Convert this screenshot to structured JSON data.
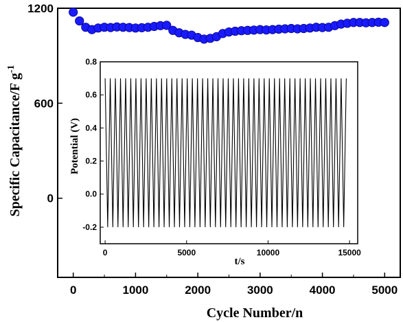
{
  "chart_data": [
    {
      "type": "scatter",
      "role": "main",
      "xlabel": "Cycle Number/n",
      "ylabel_base": "Specific Capacitance/F g",
      "ylabel_superscript": "-1",
      "xlim": [
        -250,
        5250
      ],
      "ylim": [
        -500,
        1200
      ],
      "xticks": [
        0,
        1000,
        2000,
        3000,
        4000,
        5000
      ],
      "yticks": [
        0,
        600,
        1200
      ],
      "marker_color": "#1a1aff",
      "marker_edge": "#000080",
      "series": [
        {
          "x": [
            0,
            100,
            200,
            300,
            400,
            500,
            600,
            700,
            800,
            900,
            1000,
            1100,
            1200,
            1300,
            1400,
            1500,
            1600,
            1700,
            1800,
            1900,
            2000,
            2100,
            2200,
            2300,
            2400,
            2500,
            2600,
            2700,
            2800,
            2900,
            3000,
            3100,
            3200,
            3300,
            3400,
            3500,
            3600,
            3700,
            3800,
            3900,
            4000,
            4100,
            4200,
            4300,
            4400,
            4500,
            4600,
            4700,
            4800,
            4900,
            5000
          ],
          "y": [
            1175,
            1120,
            1080,
            1065,
            1075,
            1080,
            1078,
            1082,
            1080,
            1078,
            1075,
            1077,
            1080,
            1085,
            1090,
            1092,
            1060,
            1045,
            1035,
            1030,
            1015,
            1005,
            1010,
            1020,
            1040,
            1050,
            1055,
            1058,
            1060,
            1062,
            1065,
            1063,
            1065,
            1068,
            1070,
            1072,
            1070,
            1072,
            1075,
            1080,
            1078,
            1080,
            1090,
            1100,
            1105,
            1110,
            1110,
            1108,
            1110,
            1112,
            1110
          ]
        }
      ]
    },
    {
      "type": "line",
      "role": "inset",
      "xlabel": "t/s",
      "ylabel": "Potential (V)",
      "xlim": [
        -300,
        15500
      ],
      "ylim": [
        -0.3,
        0.8
      ],
      "xticks": [
        0,
        5000,
        10000,
        15000
      ],
      "yticks": [
        -0.2,
        0.0,
        0.2,
        0.4,
        0.6,
        0.8
      ],
      "ytick_labels": [
        "-0.2",
        "0.0",
        "0.2",
        "0.4",
        "0.6",
        "0.8"
      ],
      "line_color": "#000000",
      "v_min": -0.2,
      "v_max": 0.7,
      "t_start": 0,
      "t_end": 14800,
      "cycles_shown": 47
    }
  ]
}
